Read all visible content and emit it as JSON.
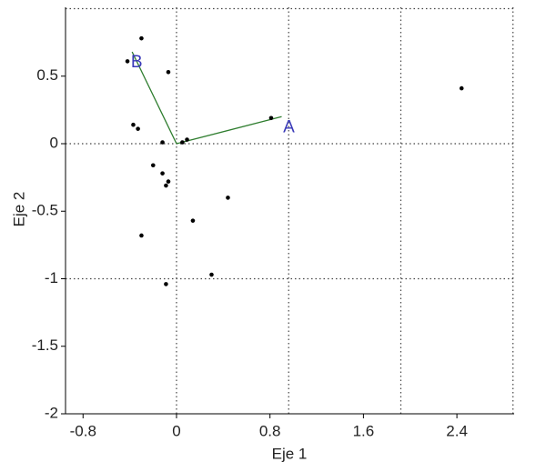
{
  "chart_data": {
    "type": "biplot",
    "x_label": "Eje 1",
    "y_label": "Eje 2",
    "xlim": [
      -0.95,
      2.89
    ],
    "ylim": [
      -2,
      1.01
    ],
    "xticks": [
      -0.8,
      0,
      0.8,
      1.6,
      2.4
    ],
    "yticks": [
      -2,
      -1.5,
      -1,
      -0.5,
      0,
      0.5
    ],
    "xgrid": [
      0,
      0.96,
      1.92,
      2.88
    ],
    "ygrid": [
      -1,
      0,
      1
    ],
    "point_color": "#000000",
    "x": [
      -0.3,
      -0.42,
      -0.07,
      -0.37,
      -0.33,
      -0.12,
      0.05,
      0.09,
      0.81,
      2.44,
      -0.2,
      -0.12,
      -0.07,
      -0.09,
      0.44,
      0.14,
      -0.3,
      0.3,
      -0.09
    ],
    "y": [
      0.78,
      0.61,
      0.53,
      0.14,
      0.11,
      0.01,
      0.01,
      0.03,
      0.19,
      0.41,
      -0.16,
      -0.22,
      -0.28,
      -0.31,
      -0.4,
      -0.57,
      -0.68,
      -0.97,
      -1.04
    ],
    "vector_color": "#2e7d2e",
    "vector_label_color": "#3a3ab8",
    "vectors": [
      {
        "name": "A",
        "x": 0.9,
        "y": 0.2
      },
      {
        "name": "B",
        "x": -0.38,
        "y": 0.68
      }
    ]
  }
}
